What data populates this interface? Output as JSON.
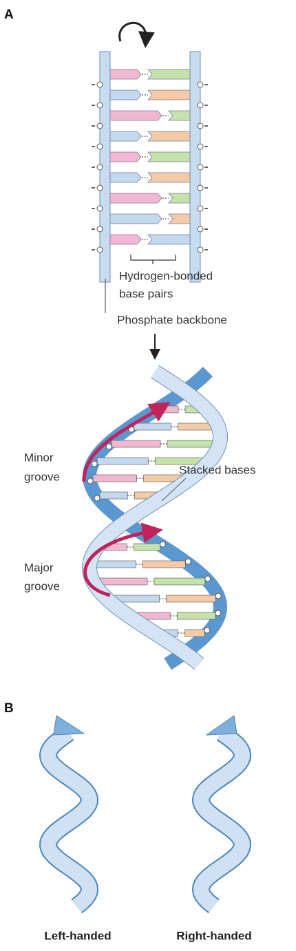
{
  "panel_a": {
    "label": "A",
    "hydrogen_bonded_base_pairs": [
      "Hydrogen-bonded",
      "base pairs"
    ],
    "phosphate_backbone": "Phosphate backbone",
    "minor_groove": [
      "Minor",
      "groove"
    ],
    "stacked_bases": "Stacked bases",
    "major_groove": [
      "Major",
      "groove"
    ]
  },
  "panel_b": {
    "label": "B",
    "left": "Left-handed",
    "right": "Right-handed"
  }
}
